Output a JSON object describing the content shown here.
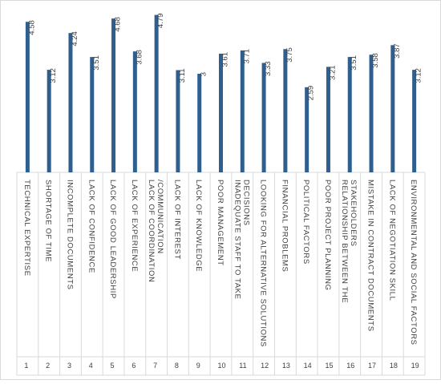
{
  "chart_data": {
    "type": "bar",
    "orientation": "vertical",
    "title": "",
    "xlabel": "",
    "ylabel": "",
    "ylim": [
      0,
      5
    ],
    "grid": false,
    "legend": "none",
    "bar_color": "#2e5f8e",
    "text_color": "#404040",
    "border_color": "#d9d9d9",
    "indices": [
      "1",
      "2",
      "3",
      "4",
      "5",
      "6",
      "7",
      "8",
      "9",
      "10",
      "11",
      "12",
      "13",
      "14",
      "15",
      "16",
      "17",
      "18",
      "19"
    ],
    "categories": [
      "TECHNICAL EXPERTISE",
      "SHORTAGE OF TIME",
      "INCOMPLETE DOCUMENTS",
      "LACK OF CONFIDENCE",
      "LACK OF GOOD LEADERSHIP",
      "LACK OF EXPERIENCE",
      "LACK OF COORDINATION /COMMUNICATION",
      "LACK OF INTEREST",
      "LACK OF KNOWLEDGE",
      "POOR MANAGEMENT",
      "INADEQUATE STAFF TO TAKE DECISIONS",
      "LOOKING FOR ALTERNATIVE SOLUTIONS",
      "FINANCIAL PROBLEMS",
      "POLITICAL FACTORS",
      "POOR PROJECT PLANNING",
      "RELATIONSHIP BETWEEN THE STAKEHOLDERS",
      "MISTAKE IN CONTRACT DOCUMENTS",
      "LACK OF NEGOTIATION SKILL",
      "ENVIRONMENTAL AND SOCIAL FACTORS"
    ],
    "label_lines": [
      [
        "TECHNICAL EXPERTISE"
      ],
      [
        "SHORTAGE OF TIME"
      ],
      [
        "INCOMPLETE DOCUMENTS"
      ],
      [
        "LACK OF CONFIDENCE"
      ],
      [
        "LACK OF GOOD LEADERSHIP"
      ],
      [
        "LACK OF EXPERIENCE"
      ],
      [
        "LACK OF COORDINATION",
        "/COMMUNICATION"
      ],
      [
        "LACK OF INTEREST"
      ],
      [
        "LACK OF KNOWLEDGE"
      ],
      [
        "POOR MANAGEMENT"
      ],
      [
        "INADEQUATE STAFF TO TAKE",
        "DECISIONS"
      ],
      [
        "LOOKING FOR ALTERNATIVE SOLUTIONS"
      ],
      [
        "FINANCIAL PROBLEMS"
      ],
      [
        "POLITICAL FACTORS"
      ],
      [
        "POOR PROJECT PLANNING"
      ],
      [
        "RELATIONSHIP BETWEEN THE",
        "STAKEHOLDERS"
      ],
      [
        "MISTAKE IN CONTRACT DOCUMENTS"
      ],
      [
        "LACK OF NEGOTIATION SKILL"
      ],
      [
        "ENVIRONMENTAL AND SOCIAL FACTORS"
      ]
    ],
    "values": [
      4.58,
      3.12,
      4.24,
      3.51,
      4.68,
      3.68,
      4.79,
      3.11,
      3,
      3.61,
      3.71,
      3.33,
      3.75,
      2.59,
      3.21,
      3.51,
      3.58,
      3.87,
      3.12
    ],
    "value_labels": [
      "4.58",
      "3.12",
      "4.24",
      "3.51",
      "4.68",
      "3.68",
      "4.79",
      "3.11",
      "3",
      "3.61",
      "3.71",
      "3.33",
      "3.75",
      "2.59",
      "3.21",
      "3.51",
      "3.58",
      "3.87",
      "3.12"
    ]
  }
}
